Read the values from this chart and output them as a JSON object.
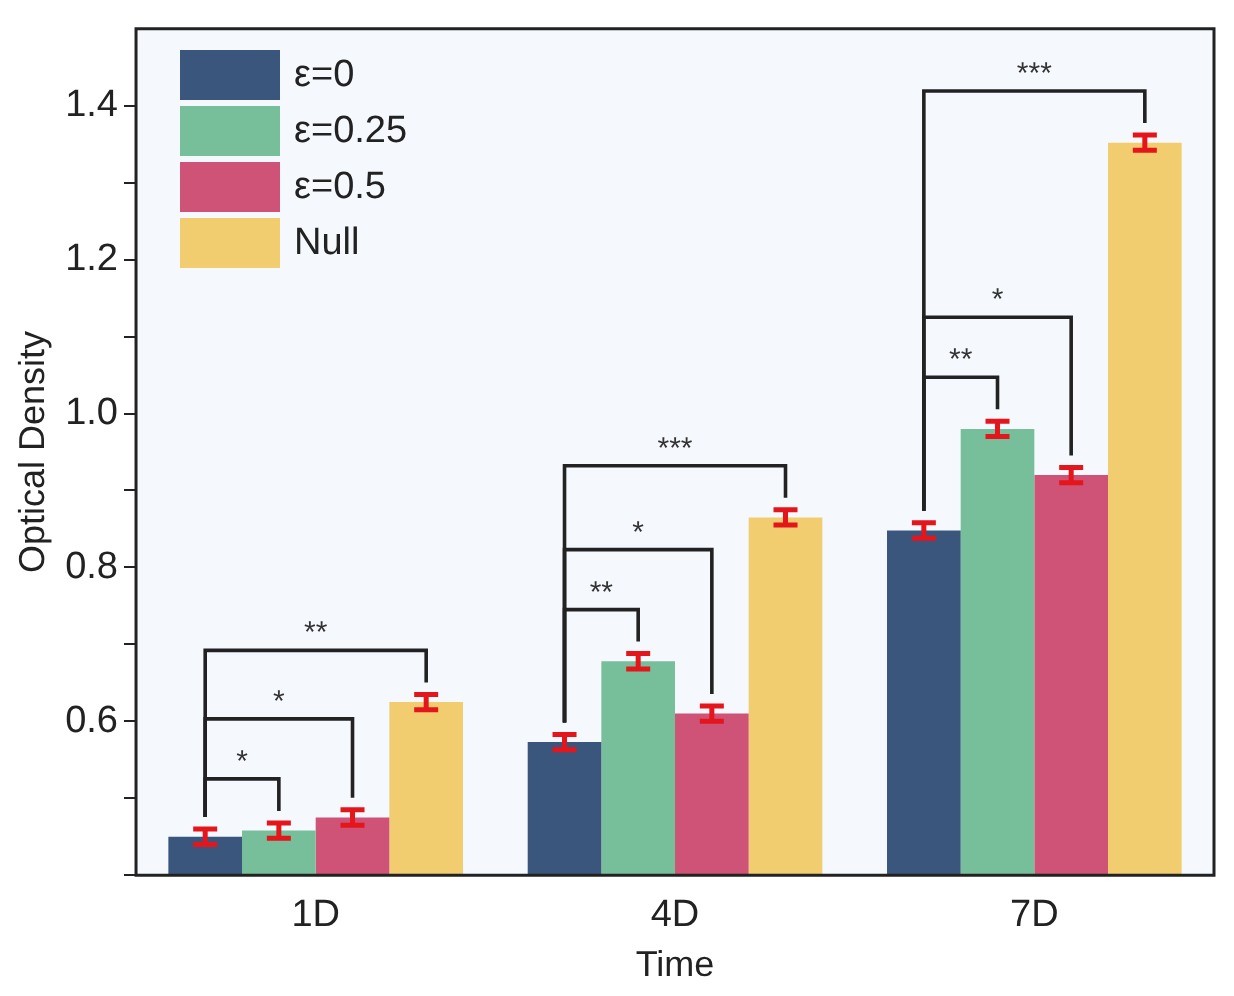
{
  "chart_data": {
    "type": "bar",
    "xlabel": "Time",
    "ylabel": "Optical Density",
    "categories": [
      "1D",
      "4D",
      "7D"
    ],
    "series": [
      {
        "name": "ε=0",
        "color": "#3b567d",
        "values": [
          0.45,
          0.573,
          0.848
        ],
        "errors": [
          0.01,
          0.01,
          0.01
        ]
      },
      {
        "name": "ε=0.25",
        "color": "#77bf9a",
        "values": [
          0.458,
          0.678,
          0.98
        ],
        "errors": [
          0.01,
          0.01,
          0.01
        ]
      },
      {
        "name": "ε=0.5",
        "color": "#cf5277",
        "values": [
          0.475,
          0.61,
          0.92
        ],
        "errors": [
          0.01,
          0.01,
          0.01
        ]
      },
      {
        "name": "Null",
        "color": "#f1cd70",
        "values": [
          0.625,
          0.865,
          1.352
        ],
        "errors": [
          0.01,
          0.01,
          0.01
        ]
      }
    ],
    "ylim": [
      0.4,
      1.5
    ],
    "yticks": [
      {
        "value": 0.4,
        "label": null
      },
      {
        "value": 0.5,
        "label": null
      },
      0.6,
      {
        "value": 0.7,
        "label": null
      },
      0.8,
      {
        "value": 0.9,
        "label": null
      },
      {
        "value": 1,
        "label": "1.0"
      },
      {
        "value": 1.1,
        "label": null
      },
      1.2,
      {
        "value": 1.3,
        "label": null
      },
      1.4
    ],
    "annotations": [
      "*",
      "*",
      "**",
      "**",
      "*",
      "***",
      "**",
      "*",
      "***"
    ],
    "grid": false,
    "legend": "top left"
  }
}
